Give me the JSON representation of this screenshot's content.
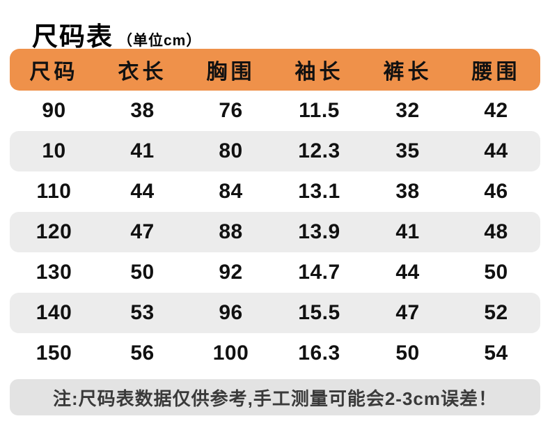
{
  "title": {
    "main": "尺码表",
    "unit": "（单位cm）"
  },
  "note": "注:尺码表数据仅供参考,手工测量可能会2-3cm误差！",
  "colors": {
    "header_bg": "#EF914A",
    "row_alt_bg": "#ECECEC",
    "note_bg": "#E3E3E3",
    "text": "#1A1A1A"
  },
  "chart_data": {
    "type": "table",
    "title": "尺码表（单位cm）",
    "columns": [
      "尺码",
      "衣长",
      "胸围",
      "袖长",
      "裤长",
      "腰围"
    ],
    "rows": [
      [
        "90",
        "38",
        "76",
        "11.5",
        "32",
        "42"
      ],
      [
        "10",
        "41",
        "80",
        "12.3",
        "35",
        "44"
      ],
      [
        "110",
        "44",
        "84",
        "13.1",
        "38",
        "46"
      ],
      [
        "120",
        "47",
        "88",
        "13.9",
        "41",
        "48"
      ],
      [
        "130",
        "50",
        "92",
        "14.7",
        "44",
        "50"
      ],
      [
        "140",
        "53",
        "96",
        "15.5",
        "47",
        "52"
      ],
      [
        "150",
        "56",
        "100",
        "16.3",
        "50",
        "54"
      ]
    ],
    "footnote": "注:尺码表数据仅供参考,手工测量可能会2-3cm误差！",
    "layout": {
      "striped": true,
      "stripe_pattern": "even-rows-gray",
      "header_style": "orange-rounded"
    }
  }
}
